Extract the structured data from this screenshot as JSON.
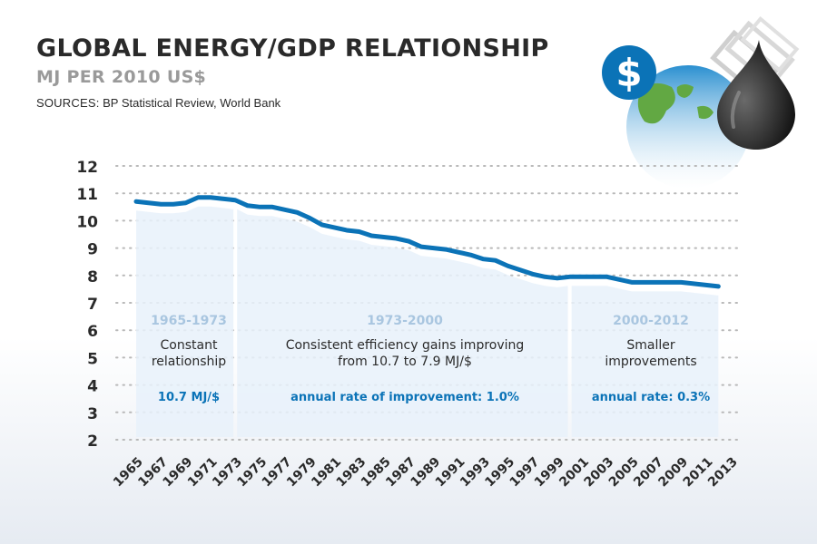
{
  "header": {
    "title": "GLOBAL ENERGY/GDP RELATIONSHIP",
    "subtitle": "MJ PER 2010 US$",
    "sources_label": "SOURCES:",
    "sources_text": " BP Statistical Review, World Bank"
  },
  "icons": [
    "dollar-coin-icon",
    "globe-icon",
    "oil-drop-icon",
    "banknotes-icon"
  ],
  "colors": {
    "line": "#0b73b7",
    "area": "#e7f1fa",
    "period_label": "#a9c6e0",
    "annotation_accent": "#0b73b7",
    "text": "#2a2a2a",
    "coin": "#0b73b7"
  },
  "chart_data": {
    "type": "line",
    "ylim": [
      2,
      12
    ],
    "yticks": [
      2,
      3,
      4,
      5,
      6,
      7,
      8,
      9,
      10,
      11,
      12
    ],
    "xlim": [
      1965,
      2013
    ],
    "xtick_labels": [
      "1965",
      "1967",
      "1969",
      "1971",
      "1973",
      "1975",
      "1977",
      "1979",
      "1981",
      "1983",
      "1985",
      "1987",
      "1989",
      "1991",
      "1993",
      "1995",
      "1997",
      "1999",
      "2001",
      "2003",
      "2005",
      "2007",
      "2009",
      "2011",
      "2013"
    ],
    "grid": true,
    "series": [
      {
        "x": [
          1965,
          1966,
          1967,
          1968,
          1969,
          1970,
          1971,
          1972,
          1973,
          1974,
          1975,
          1976,
          1977,
          1978,
          1979,
          1980,
          1981,
          1982,
          1983,
          1984,
          1985,
          1986,
          1987,
          1988,
          1989,
          1990,
          1991,
          1992,
          1993,
          1994,
          1995,
          1996,
          1997,
          1998,
          1999,
          2000,
          2001,
          2002,
          2003,
          2004,
          2005,
          2006,
          2007,
          2008,
          2009,
          2010,
          2011,
          2012
        ],
        "y": [
          10.7,
          10.65,
          10.6,
          10.6,
          10.65,
          10.85,
          10.85,
          10.8,
          10.75,
          10.55,
          10.5,
          10.5,
          10.4,
          10.3,
          10.1,
          9.85,
          9.75,
          9.65,
          9.6,
          9.45,
          9.4,
          9.35,
          9.25,
          9.05,
          9.0,
          8.95,
          8.85,
          8.75,
          8.6,
          8.55,
          8.35,
          8.2,
          8.05,
          7.95,
          7.9,
          7.95,
          7.95,
          7.95,
          7.95,
          7.85,
          7.75,
          7.75,
          7.75,
          7.75,
          7.75,
          7.7,
          7.65,
          7.6
        ]
      }
    ],
    "periods": [
      {
        "range": "1965-1973",
        "description": [
          "Constant",
          "relationship"
        ],
        "rate": "10.7 MJ/$"
      },
      {
        "range": "1973-2000",
        "description": [
          "Consistent efficiency gains improving",
          "from 10.7 to 7.9 MJ/$"
        ],
        "rate": "annual rate of improvement: 1.0%"
      },
      {
        "range": "2000-2012",
        "description": [
          "Smaller",
          "improvements"
        ],
        "rate": "annual rate: 0.3%"
      }
    ]
  }
}
